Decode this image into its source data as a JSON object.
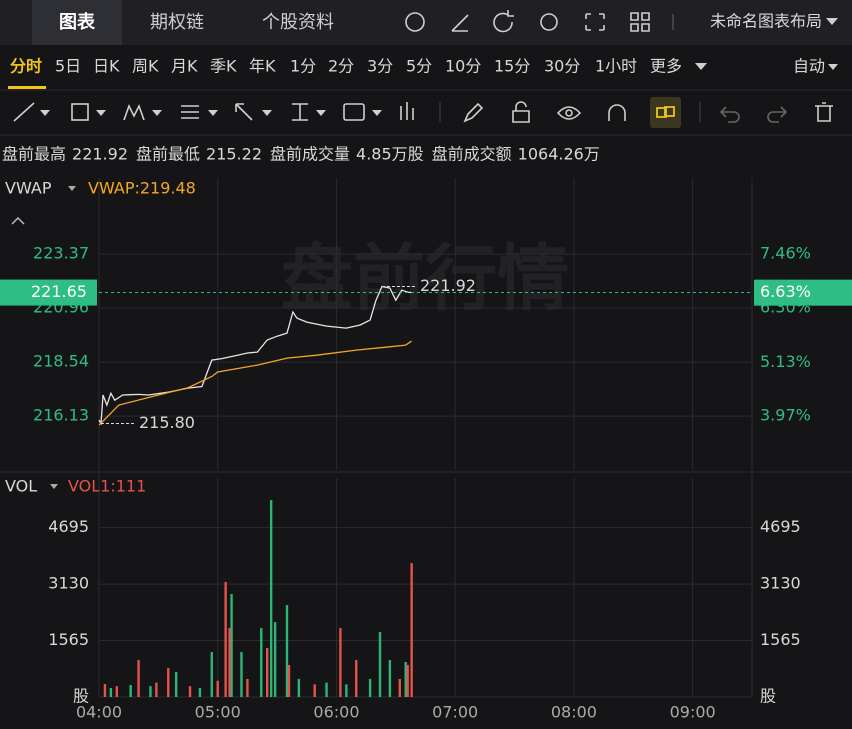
{
  "ui": {
    "tabs": [
      "图表",
      "期权链",
      "个股资料"
    ],
    "layout_name": "未命名图表布局",
    "intervals": [
      "分时",
      "5日",
      "日K",
      "周K",
      "月K",
      "季K",
      "年K",
      "1分",
      "2分",
      "3分",
      "5分",
      "10分",
      "15分",
      "30分",
      "1小时",
      "更多"
    ],
    "scale_mode": "自动",
    "stats": [
      {
        "label": "盘前最高",
        "value": "221.92"
      },
      {
        "label": "盘前最低",
        "value": "215.22"
      },
      {
        "label": "盘前成交量",
        "value": "4.85万股"
      },
      {
        "label": "盘前成交额",
        "value": "1064.26万"
      }
    ]
  },
  "chart_data": [
    {
      "type": "line",
      "indicator": "VWAP",
      "legend": "VWAP:219.48",
      "watermark": "盘前行情",
      "xlim": [
        "04:00",
        "09:30"
      ],
      "xticks": [
        "04:00",
        "05:00",
        "06:00",
        "07:00",
        "08:00",
        "09:00"
      ],
      "ylim": [
        213.72,
        226.77
      ],
      "yticks": [
        216.13,
        218.54,
        220.96,
        223.37
      ],
      "y2lim": [
        2.81,
        9.1
      ],
      "y2ticks": [
        {
          "value": 3.97,
          "label": "3.97%"
        },
        {
          "value": 5.13,
          "label": "5.13%"
        },
        {
          "value": 6.3,
          "label": "6.30%"
        },
        {
          "value": 7.46,
          "label": "7.46%"
        }
      ],
      "series": [
        {
          "color": "#e6e6e6",
          "x": [
            "04:00",
            "04:01",
            "04:02",
            "04:04",
            "04:06",
            "04:08",
            "04:12",
            "04:20",
            "04:25",
            "04:35",
            "04:45",
            "04:52",
            "04:57",
            "05:02",
            "05:10",
            "05:15",
            "05:20",
            "05:25",
            "05:30",
            "05:35",
            "05:38",
            "05:40",
            "05:45",
            "05:55",
            "06:05",
            "06:12",
            "06:17",
            "06:20",
            "06:23",
            "06:27",
            "06:30",
            "06:33",
            "06:36",
            "06:38"
          ],
          "values": [
            215.95,
            215.8,
            217.07,
            216.62,
            217.15,
            216.84,
            217.07,
            217.1,
            217.07,
            217.2,
            217.38,
            217.45,
            218.63,
            218.7,
            218.85,
            218.95,
            218.99,
            219.53,
            219.7,
            219.84,
            220.78,
            220.51,
            220.33,
            220.15,
            220.06,
            220.2,
            220.42,
            221.31,
            221.92,
            221.85,
            221.31,
            221.76,
            221.67,
            221.65
          ]
        },
        {
          "color": "#f5a623",
          "x": [
            "04:00",
            "04:02",
            "04:10",
            "04:30",
            "04:45",
            "04:57",
            "05:00",
            "05:20",
            "05:35",
            "05:50",
            "06:10",
            "06:25",
            "06:35",
            "06:38"
          ],
          "values": [
            215.73,
            215.9,
            216.62,
            217.07,
            217.4,
            217.9,
            218.1,
            218.41,
            218.72,
            218.85,
            219.08,
            219.21,
            219.3,
            219.48
          ]
        }
      ],
      "last_price": 221.65,
      "last_change": {
        "value": 6.63,
        "label": "6.63%"
      },
      "last_color": "#2ebd85",
      "annotations": {
        "x": [
          "06:23",
          "04:01"
        ],
        "values": [
          221.92,
          215.8
        ],
        "value_labels": [
          "221.92",
          "215.80"
        ]
      }
    },
    {
      "type": "bar",
      "indicator": "VOL",
      "legend": "VOL1:111",
      "xlim": [
        "04:00",
        "09:30"
      ],
      "xticks": [
        "04:00",
        "05:00",
        "06:00",
        "07:00",
        "08:00",
        "09:00"
      ],
      "ylim": [
        0,
        6070
      ],
      "yticks": [
        {
          "value": 0,
          "label": "股"
        },
        1565,
        3130,
        4695
      ],
      "series": [
        {
          "color": "#2bb673",
          "x": [
            "04:06",
            "04:16",
            "04:26",
            "04:39",
            "04:51",
            "04:57",
            "05:07",
            "05:12",
            "05:22",
            "05:27",
            "05:29",
            "05:35",
            "05:41",
            "05:55",
            "06:05",
            "06:17",
            "06:22",
            "06:27",
            "06:35"
          ],
          "values": [
            250,
            332,
            300,
            692,
            250,
            1246,
            2853,
            1246,
            1911,
            5457,
            2077,
            2548,
            500,
            400,
            350,
            500,
            1800,
            1025,
            970
          ]
        },
        {
          "color": "#e5534b",
          "x": [
            "04:03",
            "04:09",
            "04:20",
            "04:29",
            "04:35",
            "04:46",
            "05:00",
            "05:04",
            "05:06",
            "05:15",
            "05:25",
            "05:36",
            "05:49",
            "06:02",
            "06:10",
            "06:32",
            "06:36",
            "06:38"
          ],
          "values": [
            360,
            300,
            1025,
            400,
            803,
            300,
            450,
            3186,
            1911,
            500,
            1357,
            886,
            350,
            1911,
            1025,
            500,
            886,
            3712
          ]
        }
      ]
    }
  ]
}
